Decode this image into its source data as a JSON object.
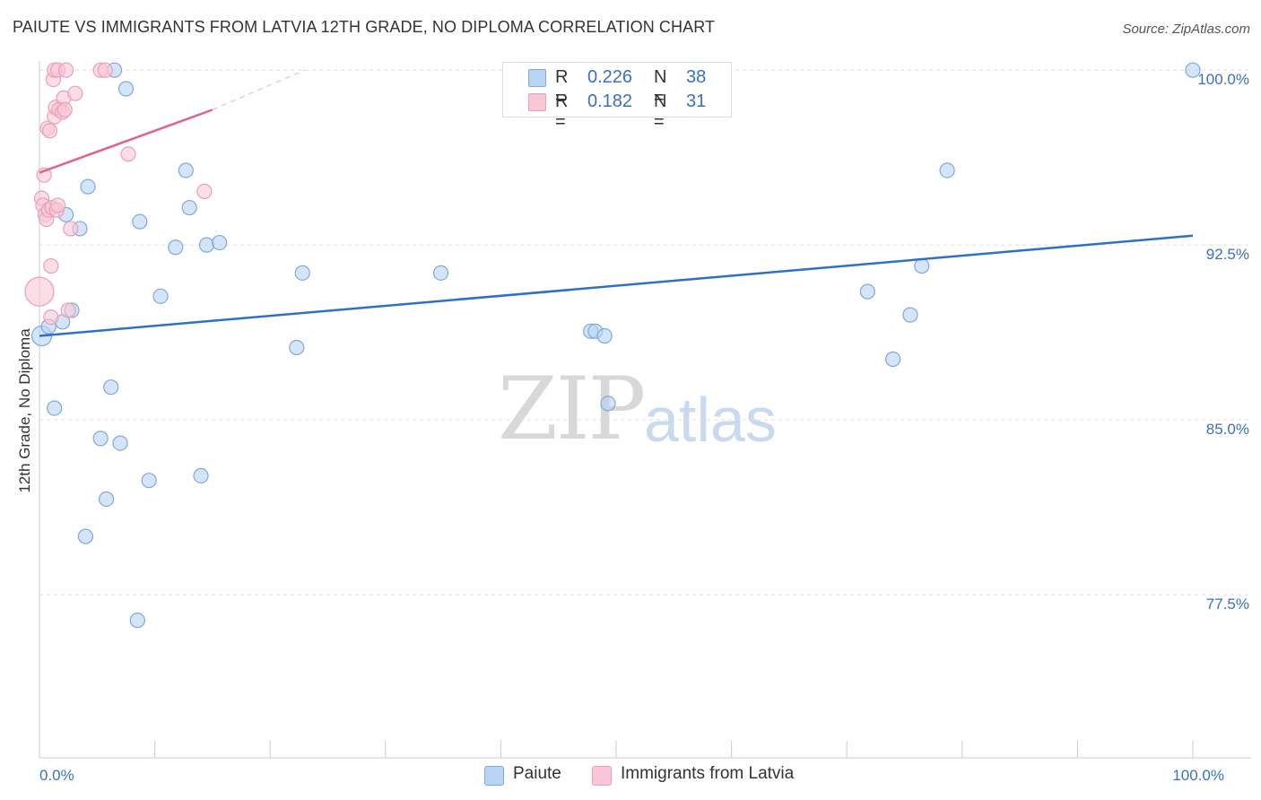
{
  "title": "PAIUTE VS IMMIGRANTS FROM LATVIA 12TH GRADE, NO DIPLOMA CORRELATION CHART",
  "source": "Source: ZipAtlas.com",
  "watermark": {
    "zip": "ZIP",
    "atlas": "atlas"
  },
  "legend": {
    "series1": {
      "r_label": "R =",
      "r_value": "0.226",
      "n_label": "N =",
      "n_value": "38"
    },
    "series2": {
      "r_label": "R =",
      "r_value": "0.182",
      "n_label": "N =",
      "n_value": "31"
    }
  },
  "bottom_legend": {
    "series1": "Paiute",
    "series2": "Immigrants from Latvia"
  },
  "colors": {
    "blue_fill": "#b8d3f4",
    "blue_stroke": "#7fa8dc",
    "blue_line": "#2f6fcc",
    "pink_fill": "#f8c6d4",
    "pink_stroke": "#e9a0b6",
    "pink_line": "#e0628e",
    "tick_label": "#3a6fc4",
    "grid": "#dddddd"
  },
  "chart_data": {
    "type": "scatter",
    "title": "PAIUTE VS IMMIGRANTS FROM LATVIA 12TH GRADE, NO DIPLOMA CORRELATION CHART",
    "xlabel": "",
    "ylabel": "12th Grade, No Diploma",
    "xlim": [
      0,
      100
    ],
    "ylim": [
      70.5,
      100.7
    ],
    "x_tick_labels": [
      {
        "value": 0,
        "label": "0.0%"
      },
      {
        "value": 100,
        "label": "100.0%"
      }
    ],
    "x_minor_ticks": [
      0,
      10,
      20,
      30,
      40,
      50,
      60,
      70,
      80,
      90,
      100
    ],
    "y_ticks": [
      {
        "value": 100,
        "label": "100.0%"
      },
      {
        "value": 92.5,
        "label": "92.5%"
      },
      {
        "value": 85,
        "label": "85.0%"
      },
      {
        "value": 77.5,
        "label": "77.5%"
      }
    ],
    "series": [
      {
        "name": "Paiute",
        "color": "#b8d3f4",
        "points": [
          {
            "x": 0.2,
            "y": 88.6,
            "size": 11
          },
          {
            "x": 0.8,
            "y": 89.0,
            "size": 8
          },
          {
            "x": 1.3,
            "y": 85.5,
            "size": 8
          },
          {
            "x": 2.0,
            "y": 89.2,
            "size": 8
          },
          {
            "x": 2.3,
            "y": 93.8,
            "size": 8
          },
          {
            "x": 2.8,
            "y": 89.7,
            "size": 8
          },
          {
            "x": 3.5,
            "y": 93.2,
            "size": 8
          },
          {
            "x": 4.0,
            "y": 80.0,
            "size": 8
          },
          {
            "x": 4.2,
            "y": 95.0,
            "size": 8
          },
          {
            "x": 5.3,
            "y": 84.2,
            "size": 8
          },
          {
            "x": 5.8,
            "y": 81.6,
            "size": 8
          },
          {
            "x": 6.2,
            "y": 86.4,
            "size": 8
          },
          {
            "x": 6.5,
            "y": 100.0,
            "size": 8
          },
          {
            "x": 7.0,
            "y": 84.0,
            "size": 8
          },
          {
            "x": 7.5,
            "y": 99.2,
            "size": 8
          },
          {
            "x": 8.5,
            "y": 76.4,
            "size": 8
          },
          {
            "x": 8.7,
            "y": 93.5,
            "size": 8
          },
          {
            "x": 9.5,
            "y": 82.4,
            "size": 8
          },
          {
            "x": 10.5,
            "y": 90.3,
            "size": 8
          },
          {
            "x": 11.8,
            "y": 92.4,
            "size": 8
          },
          {
            "x": 12.7,
            "y": 95.7,
            "size": 8
          },
          {
            "x": 13.0,
            "y": 94.1,
            "size": 8
          },
          {
            "x": 14.0,
            "y": 82.6,
            "size": 8
          },
          {
            "x": 14.5,
            "y": 92.5,
            "size": 8
          },
          {
            "x": 15.6,
            "y": 92.6,
            "size": 8
          },
          {
            "x": 22.3,
            "y": 88.1,
            "size": 8
          },
          {
            "x": 22.8,
            "y": 91.3,
            "size": 8
          },
          {
            "x": 34.8,
            "y": 91.3,
            "size": 8
          },
          {
            "x": 47.8,
            "y": 88.8,
            "size": 8
          },
          {
            "x": 48.2,
            "y": 88.8,
            "size": 8
          },
          {
            "x": 49.0,
            "y": 88.6,
            "size": 8
          },
          {
            "x": 49.3,
            "y": 85.7,
            "size": 8
          },
          {
            "x": 71.8,
            "y": 90.5,
            "size": 8
          },
          {
            "x": 74.0,
            "y": 87.6,
            "size": 8
          },
          {
            "x": 75.5,
            "y": 89.5,
            "size": 8
          },
          {
            "x": 76.5,
            "y": 91.6,
            "size": 8
          },
          {
            "x": 78.7,
            "y": 95.7,
            "size": 8
          },
          {
            "x": 100.0,
            "y": 100.0,
            "size": 8
          }
        ],
        "trend": {
          "x": [
            0,
            100
          ],
          "y": [
            88.6,
            92.9
          ],
          "style": "solid"
        }
      },
      {
        "name": "Immigrants from Latvia",
        "color": "#f8c6d4",
        "points": [
          {
            "x": 0.0,
            "y": 90.5,
            "size": 16
          },
          {
            "x": 0.2,
            "y": 94.5,
            "size": 8
          },
          {
            "x": 0.3,
            "y": 94.2,
            "size": 8
          },
          {
            "x": 0.4,
            "y": 95.5,
            "size": 8
          },
          {
            "x": 0.5,
            "y": 93.8,
            "size": 8
          },
          {
            "x": 0.6,
            "y": 93.6,
            "size": 8
          },
          {
            "x": 0.7,
            "y": 97.5,
            "size": 8
          },
          {
            "x": 0.8,
            "y": 94.0,
            "size": 8
          },
          {
            "x": 0.9,
            "y": 97.4,
            "size": 8
          },
          {
            "x": 1.0,
            "y": 89.4,
            "size": 8
          },
          {
            "x": 1.0,
            "y": 91.6,
            "size": 8
          },
          {
            "x": 1.1,
            "y": 94.1,
            "size": 8
          },
          {
            "x": 1.2,
            "y": 99.6,
            "size": 8
          },
          {
            "x": 1.3,
            "y": 98.0,
            "size": 8
          },
          {
            "x": 1.3,
            "y": 100.0,
            "size": 8
          },
          {
            "x": 1.4,
            "y": 98.4,
            "size": 8
          },
          {
            "x": 1.5,
            "y": 94.0,
            "size": 8
          },
          {
            "x": 1.6,
            "y": 100.0,
            "size": 8
          },
          {
            "x": 1.6,
            "y": 94.2,
            "size": 8
          },
          {
            "x": 1.7,
            "y": 98.3,
            "size": 8
          },
          {
            "x": 2.0,
            "y": 98.2,
            "size": 8
          },
          {
            "x": 2.1,
            "y": 98.8,
            "size": 8
          },
          {
            "x": 2.2,
            "y": 98.3,
            "size": 8
          },
          {
            "x": 2.3,
            "y": 100.0,
            "size": 8
          },
          {
            "x": 2.5,
            "y": 89.7,
            "size": 8
          },
          {
            "x": 2.7,
            "y": 93.2,
            "size": 8
          },
          {
            "x": 3.1,
            "y": 99.0,
            "size": 8
          },
          {
            "x": 5.3,
            "y": 100.0,
            "size": 8
          },
          {
            "x": 5.7,
            "y": 100.0,
            "size": 8
          },
          {
            "x": 7.7,
            "y": 96.4,
            "size": 8
          },
          {
            "x": 14.3,
            "y": 94.8,
            "size": 8
          }
        ],
        "trend": {
          "x": [
            0,
            15
          ],
          "y": [
            95.6,
            98.3
          ],
          "style": "solid",
          "extension": {
            "x": [
              15,
              23
            ],
            "y": [
              98.3,
              100.0
            ],
            "style": "dashed"
          }
        }
      }
    ]
  }
}
